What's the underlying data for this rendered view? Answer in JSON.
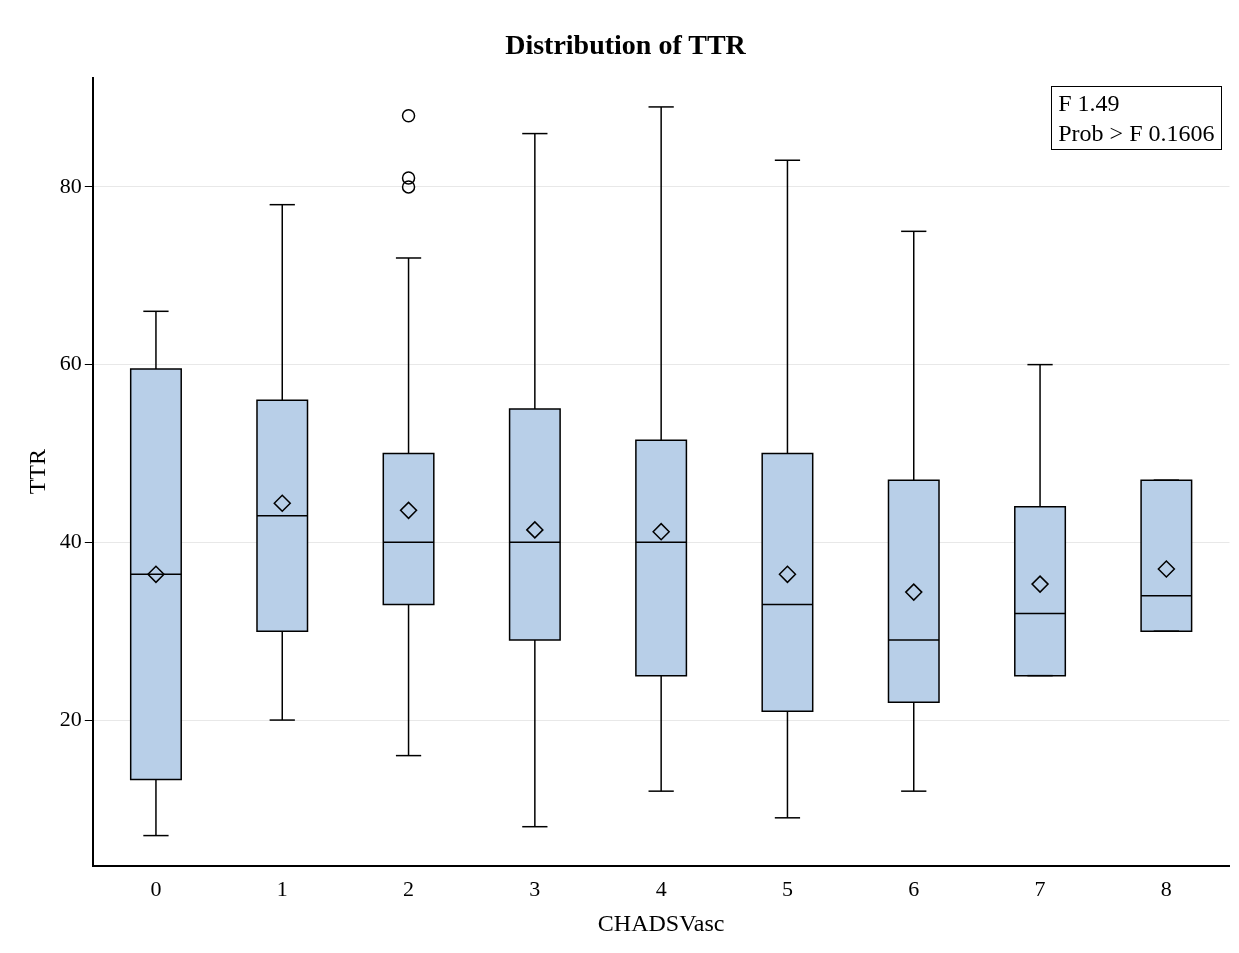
{
  "chart_data": {
    "type": "box",
    "title": "Distribution of TTR",
    "xlabel": "CHADSVasc",
    "ylabel": "TTR",
    "categories": [
      "0",
      "1",
      "2",
      "3",
      "4",
      "5",
      "6",
      "7",
      "8"
    ],
    "color": "#b8cfe8",
    "boxes": [
      {
        "low": 7,
        "q1": 13.3,
        "median": 36.4,
        "q3": 59.5,
        "high": 66,
        "mean": 36.4
      },
      {
        "low": 20,
        "q1": 30,
        "median": 43,
        "q3": 56,
        "high": 78,
        "mean": 44.4
      },
      {
        "low": 16,
        "q1": 33,
        "median": 40,
        "q3": 50,
        "high": 72,
        "mean": 43.6,
        "outliers": [
          80,
          81,
          88
        ]
      },
      {
        "low": 8,
        "q1": 29,
        "median": 40,
        "q3": 55,
        "high": 86,
        "mean": 41.4
      },
      {
        "low": 12,
        "q1": 25,
        "median": 40,
        "q3": 51.5,
        "high": 89,
        "mean": 41.2
      },
      {
        "low": 9,
        "q1": 21,
        "median": 33,
        "q3": 50,
        "high": 83,
        "mean": 36.4
      },
      {
        "low": 12,
        "q1": 22,
        "median": 29,
        "q3": 47,
        "high": 75,
        "mean": 34.4
      },
      {
        "low": 25,
        "q1": 25,
        "median": 32,
        "q3": 44,
        "high": 60,
        "mean": 35.3
      },
      {
        "low": 30,
        "q1": 30,
        "median": 34,
        "q3": 47,
        "high": 47,
        "mean": 37
      }
    ],
    "ylim": [
      3.6,
      92.3
    ],
    "yticks": [
      20,
      40,
      60,
      80
    ],
    "grid": "y",
    "annotations": [
      "F 1.49",
      "Prob > F 0.1606"
    ]
  }
}
